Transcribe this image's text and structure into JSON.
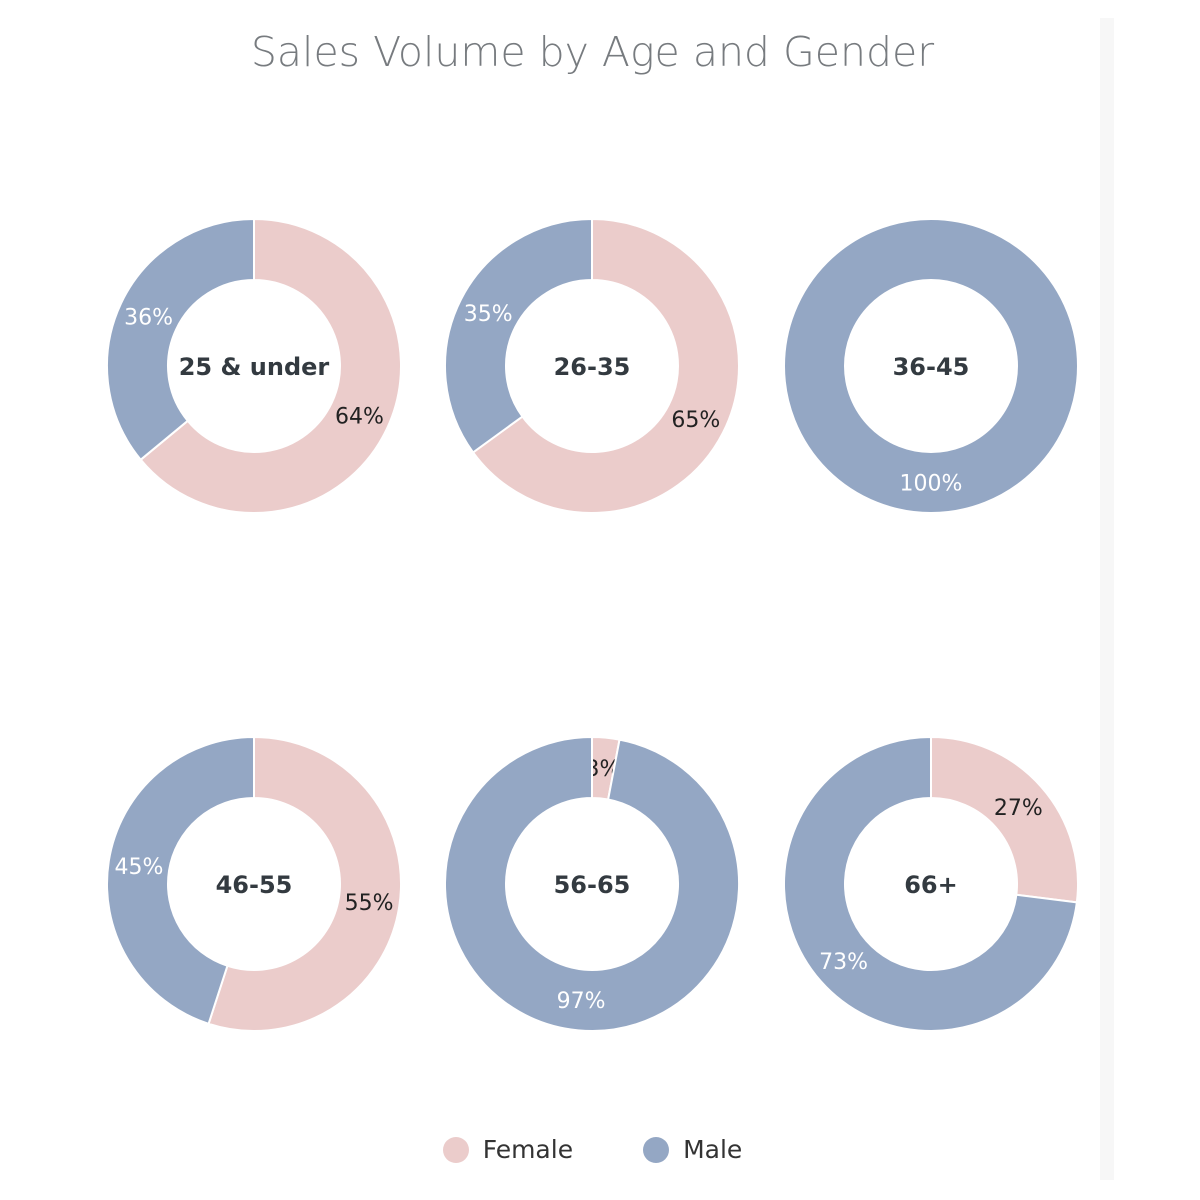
{
  "chart_data": {
    "type": "pie",
    "variant": "donut-grid",
    "title": "Sales Volume by Age and Gender",
    "legend": {
      "placement": "bottom-center",
      "entries": [
        "Female",
        "Male"
      ]
    },
    "colors": {
      "Female": "#ebcccb",
      "Male": "#94a7c4"
    },
    "charts": [
      {
        "label": "25 & under",
        "slices": [
          {
            "name": "Female",
            "value": 64,
            "label": "64%"
          },
          {
            "name": "Male",
            "value": 36,
            "label": "36%"
          }
        ]
      },
      {
        "label": "26-35",
        "slices": [
          {
            "name": "Female",
            "value": 65,
            "label": "65%"
          },
          {
            "name": "Male",
            "value": 35,
            "label": "35%"
          }
        ]
      },
      {
        "label": "36-45",
        "slices": [
          {
            "name": "Female",
            "value": 0,
            "label": ""
          },
          {
            "name": "Male",
            "value": 100,
            "label": "100%"
          }
        ]
      },
      {
        "label": "46-55",
        "slices": [
          {
            "name": "Female",
            "value": 55,
            "label": "55%"
          },
          {
            "name": "Male",
            "value": 45,
            "label": "45%"
          }
        ]
      },
      {
        "label": "56-65",
        "slices": [
          {
            "name": "Female",
            "value": 3,
            "label": "3%"
          },
          {
            "name": "Male",
            "value": 97,
            "label": "97%"
          }
        ]
      },
      {
        "label": "66+",
        "slices": [
          {
            "name": "Female",
            "value": 27,
            "label": "27%"
          },
          {
            "name": "Male",
            "value": 73,
            "label": "73%"
          }
        ]
      }
    ]
  }
}
